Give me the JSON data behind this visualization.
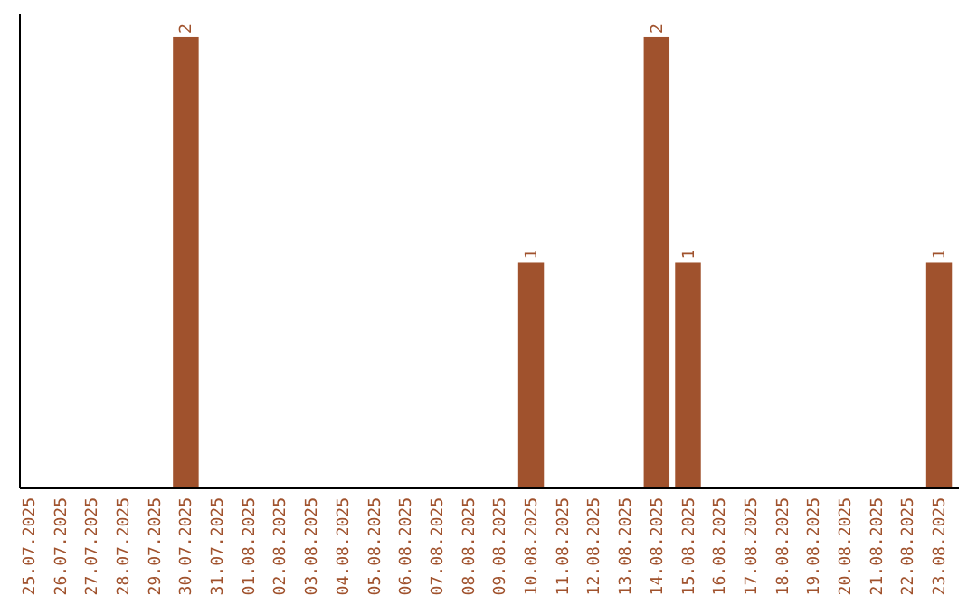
{
  "chart_data": {
    "type": "bar",
    "categories": [
      "25.07.2025",
      "26.07.2025",
      "27.07.2025",
      "28.07.2025",
      "29.07.2025",
      "30.07.2025",
      "31.07.2025",
      "01.08.2025",
      "02.08.2025",
      "03.08.2025",
      "04.08.2025",
      "05.08.2025",
      "06.08.2025",
      "07.08.2025",
      "08.08.2025",
      "09.08.2025",
      "10.08.2025",
      "11.08.2025",
      "12.08.2025",
      "13.08.2025",
      "14.08.2025",
      "15.08.2025",
      "16.08.2025",
      "17.08.2025",
      "18.08.2025",
      "19.08.2025",
      "20.08.2025",
      "21.08.2025",
      "22.08.2025",
      "23.08.2025"
    ],
    "values": [
      0,
      0,
      0,
      0,
      0,
      2,
      0,
      0,
      0,
      0,
      0,
      0,
      0,
      0,
      0,
      0,
      1,
      0,
      0,
      0,
      2,
      1,
      0,
      0,
      0,
      0,
      0,
      0,
      0,
      1
    ],
    "value_labels": [
      null,
      null,
      null,
      null,
      null,
      "2",
      null,
      null,
      null,
      null,
      null,
      null,
      null,
      null,
      null,
      null,
      "1",
      null,
      null,
      null,
      "2",
      "1",
      null,
      null,
      null,
      null,
      null,
      null,
      null,
      "1"
    ],
    "color": "#a0522d",
    "tick_labels": "x"
  }
}
